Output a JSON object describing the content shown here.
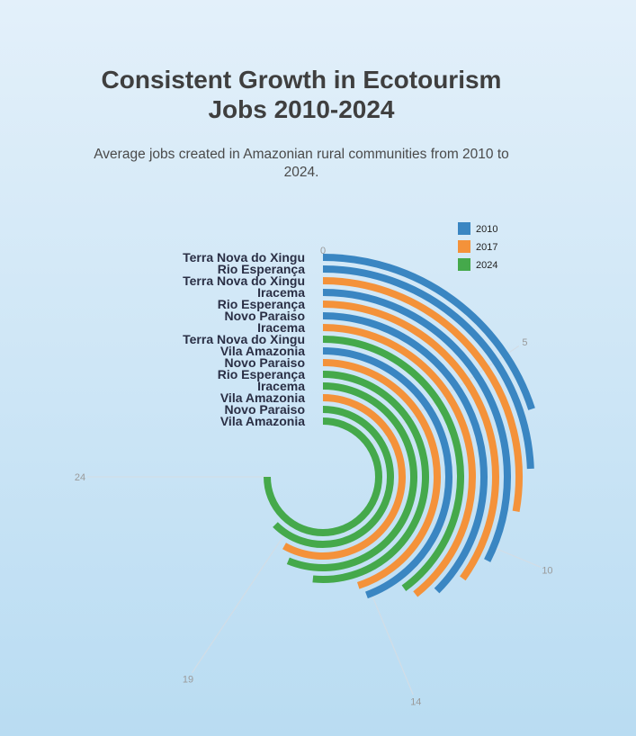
{
  "title": "Consistent Growth in Ecotourism Jobs 2010-2024",
  "subtitle": "Average jobs created in Amazonian rural communities from 2010 to 2024.",
  "colors": {
    "2010": "#3a86c2",
    "2017": "#f4923a",
    "2024": "#45a94b"
  },
  "chart_data": {
    "type": "radial-bar",
    "title": "Consistent Growth in Ecotourism Jobs 2010-2024",
    "subtitle": "Average jobs created in Amazonian rural communities from 2010 to 2024.",
    "axis": {
      "min": 0,
      "max": 24,
      "ticks": [
        0,
        5,
        10,
        14,
        19,
        24
      ]
    },
    "legend": {
      "position": "top-right",
      "items": [
        "2010",
        "2017",
        "2024"
      ]
    },
    "bars": [
      {
        "label": "Terra Nova do Xingu",
        "series": "2010",
        "value": 6.4
      },
      {
        "label": "Rio Esperança",
        "series": "2010",
        "value": 7.8
      },
      {
        "label": "Terra Nova do Xingu",
        "series": "2017",
        "value": 8.9
      },
      {
        "label": "Iracema",
        "series": "2010",
        "value": 10.4
      },
      {
        "label": "Rio Esperança",
        "series": "2017",
        "value": 11.2
      },
      {
        "label": "Novo Paraiso",
        "series": "2010",
        "value": 12.0
      },
      {
        "label": "Iracema",
        "series": "2017",
        "value": 12.6
      },
      {
        "label": "Terra Nova do Xingu",
        "series": "2024",
        "value": 12.8
      },
      {
        "label": "Vila Amazonia",
        "series": "2010",
        "value": 14.2
      },
      {
        "label": "Novo Paraiso",
        "series": "2017",
        "value": 14.4
      },
      {
        "label": "Rio Esperança",
        "series": "2024",
        "value": 16.5
      },
      {
        "label": "Iracema",
        "series": "2024",
        "value": 18.0
      },
      {
        "label": "Vila Amazonia",
        "series": "2017",
        "value": 18.6
      },
      {
        "label": "Novo Paraiso",
        "series": "2024",
        "value": 20.0
      },
      {
        "label": "Vila Amazonia",
        "series": "2024",
        "value": 24.0
      }
    ]
  }
}
